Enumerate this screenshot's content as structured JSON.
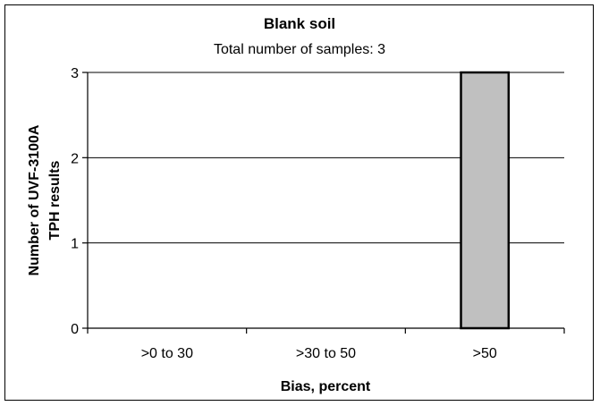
{
  "chart_data": {
    "type": "bar",
    "title": "Blank soil",
    "subtitle": "Total number of samples: 3",
    "xlabel": "Bias, percent",
    "ylabel_lines": [
      "Number of UVF-3100A",
      "TPH results"
    ],
    "categories": [
      ">0 to 30",
      ">30 to 50",
      ">50"
    ],
    "values": [
      0,
      0,
      3
    ],
    "ylim": [
      0,
      3
    ],
    "yticks": [
      "0",
      "1",
      "2",
      "3"
    ],
    "grid": true,
    "bar_color": "#c0c0c0",
    "legend": "none"
  }
}
